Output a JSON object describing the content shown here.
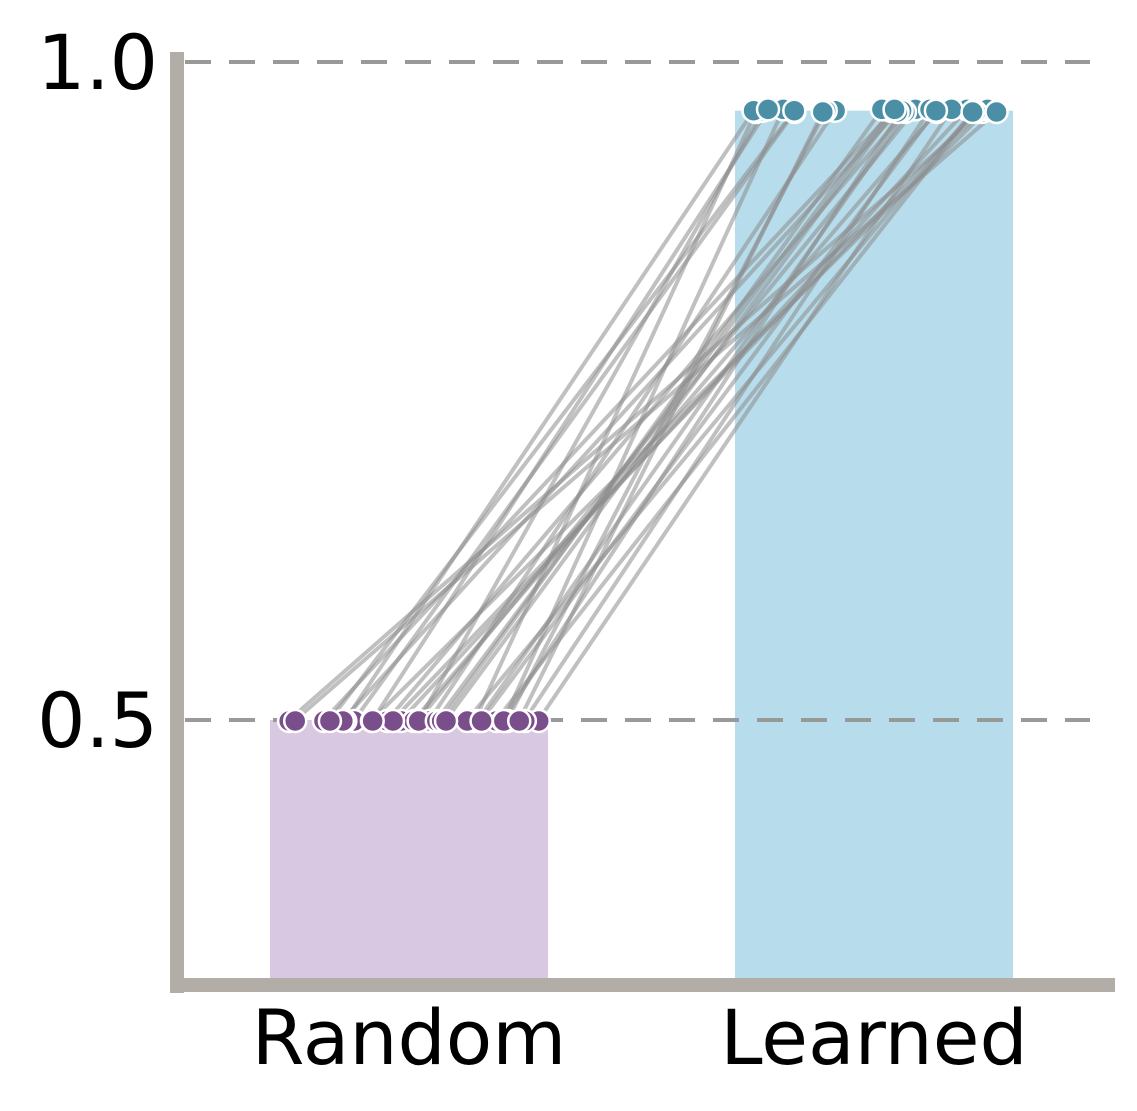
{
  "chart_data": {
    "type": "bar",
    "categories": [
      "Random",
      "Learned"
    ],
    "bar_values": [
      0.5,
      0.963
    ],
    "ylim": [
      0.3,
      1.0
    ],
    "yticks": [
      {
        "value": 0.5,
        "label": "0.5"
      },
      {
        "value": 1.0,
        "label": "1.0"
      }
    ],
    "reference_lines": [
      0.5,
      1.0
    ],
    "grid": false,
    "colors": {
      "random_bar": "#d8c8e1",
      "learned_bar": "#b7dceb",
      "random_point": "#7a4e8a",
      "learned_point": "#4a8fa6",
      "pair_line": "#8c8c8c",
      "axis": "#b2ada7",
      "reference_line": "#999999"
    },
    "paired_points": [
      {
        "random": 0.5,
        "learned": 0.962
      },
      {
        "random": 0.5,
        "learned": 0.963
      },
      {
        "random": 0.5,
        "learned": 0.964
      },
      {
        "random": 0.5,
        "learned": 0.962
      },
      {
        "random": 0.5,
        "learned": 0.963
      },
      {
        "random": 0.5,
        "learned": 0.964
      },
      {
        "random": 0.5,
        "learned": 0.962
      },
      {
        "random": 0.5,
        "learned": 0.963
      },
      {
        "random": 0.5,
        "learned": 0.964
      },
      {
        "random": 0.5,
        "learned": 0.962
      },
      {
        "random": 0.5,
        "learned": 0.963
      },
      {
        "random": 0.5,
        "learned": 0.964
      },
      {
        "random": 0.5,
        "learned": 0.962
      },
      {
        "random": 0.5,
        "learned": 0.963
      },
      {
        "random": 0.5,
        "learned": 0.964
      },
      {
        "random": 0.5,
        "learned": 0.962
      },
      {
        "random": 0.5,
        "learned": 0.963
      },
      {
        "random": 0.5,
        "learned": 0.964
      },
      {
        "random": 0.5,
        "learned": 0.962
      },
      {
        "random": 0.5,
        "learned": 0.963
      },
      {
        "random": 0.5,
        "learned": 0.964
      },
      {
        "random": 0.5,
        "learned": 0.962
      },
      {
        "random": 0.5,
        "learned": 0.963
      },
      {
        "random": 0.5,
        "learned": 0.964
      },
      {
        "random": 0.5,
        "learned": 0.962
      },
      {
        "random": 0.5,
        "learned": 0.963
      },
      {
        "random": 0.5,
        "learned": 0.964
      },
      {
        "random": 0.5,
        "learned": 0.962
      },
      {
        "random": 0.5,
        "learned": 0.963
      },
      {
        "random": 0.5,
        "learned": 0.964
      }
    ]
  }
}
